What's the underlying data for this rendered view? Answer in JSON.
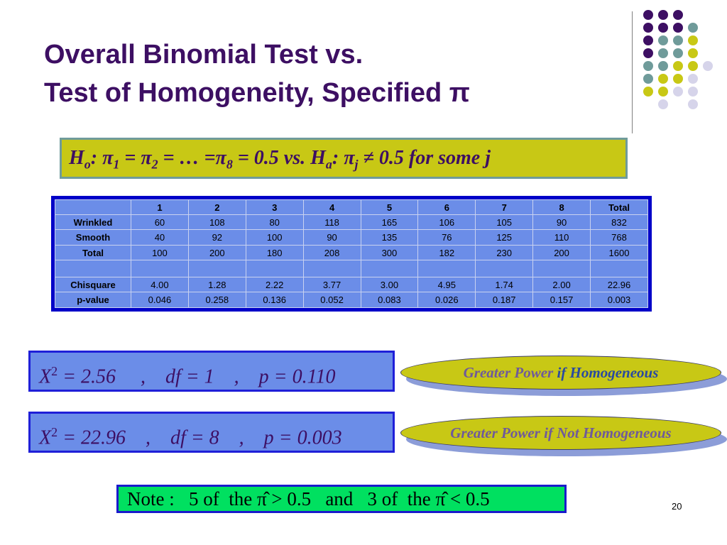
{
  "title": {
    "line1": "Overall Binomial Test vs.",
    "line2": "Test of Homogeneity, Specified π"
  },
  "hypothesis": {
    "h0_label": "H",
    "h0_sub": "o",
    "h0_body_1": ": π",
    "s1": "1",
    "h0_body_2": " = π",
    "s2": "2",
    "h0_body_3": " = …  =π",
    "s8": "8",
    "h0_body_4": " = 0.5   vs.   H",
    "ha_sub": "a",
    "ha_body_1": ": π",
    "sj": "j",
    "ha_body_2": " ≠  0.5 for some j"
  },
  "table": {
    "header": [
      "",
      "1",
      "2",
      "3",
      "4",
      "5",
      "6",
      "7",
      "8",
      "Total"
    ],
    "rows": [
      {
        "label": "Wrinkled",
        "cells": [
          "60",
          "108",
          "80",
          "118",
          "165",
          "106",
          "105",
          "90",
          "832"
        ]
      },
      {
        "label": "Smooth",
        "cells": [
          "40",
          "92",
          "100",
          "90",
          "135",
          "76",
          "125",
          "110",
          "768"
        ]
      },
      {
        "label": "Total",
        "cells": [
          "100",
          "200",
          "180",
          "208",
          "300",
          "182",
          "230",
          "200",
          "1600"
        ]
      },
      {
        "label": "",
        "cells": [
          "",
          "",
          "",
          "",
          "",
          "",
          "",
          "",
          ""
        ]
      },
      {
        "label": "Chisquare",
        "cells": [
          "4.00",
          "1.28",
          "2.22",
          "3.77",
          "3.00",
          "4.95",
          "1.74",
          "2.00",
          "22.96"
        ]
      },
      {
        "label": "p-value",
        "cells": [
          "0.046",
          "0.258",
          "0.136",
          "0.052",
          "0.083",
          "0.026",
          "0.187",
          "0.157",
          "0.003"
        ]
      }
    ]
  },
  "stat1": {
    "x": "X",
    "sup": "2",
    "text": " = 2.56     ,    df = 1    ,    p = 0.110"
  },
  "stat2": {
    "x": "X",
    "sup": "2",
    "text": " = 22.96    ,    df = 8    ,    p = 0.003"
  },
  "pill1": {
    "part1": "Greater Power ",
    "part2": "if Homogeneous"
  },
  "pill2": {
    "text": "Greater Power if Not Homogeneous"
  },
  "note": {
    "text": "Note :   5 of  the π̂ > 0.5   and   3 of  the π̂ < 0.5"
  },
  "page_number": "20",
  "colors": {
    "purple": "#3d0f63",
    "teal": "#6f9b9a",
    "olive": "#c8c815",
    "lavender": "#d6d4ea",
    "blue": "#6b8de8",
    "green": "#00e060"
  },
  "decoration": {
    "dot_grid": [
      [
        "purple",
        "purple",
        "purple",
        "none",
        "none"
      ],
      [
        "purple",
        "purple",
        "purple",
        "teal",
        "none"
      ],
      [
        "purple",
        "teal",
        "teal",
        "olive",
        "none"
      ],
      [
        "purple",
        "teal",
        "teal",
        "olive",
        "none"
      ],
      [
        "teal",
        "teal",
        "olive",
        "olive",
        "lavender"
      ],
      [
        "teal",
        "olive",
        "olive",
        "lavender",
        "none"
      ],
      [
        "olive",
        "olive",
        "lavender",
        "lavender",
        "none"
      ],
      [
        "none",
        "lavender",
        "none",
        "lavender",
        "none"
      ]
    ]
  }
}
